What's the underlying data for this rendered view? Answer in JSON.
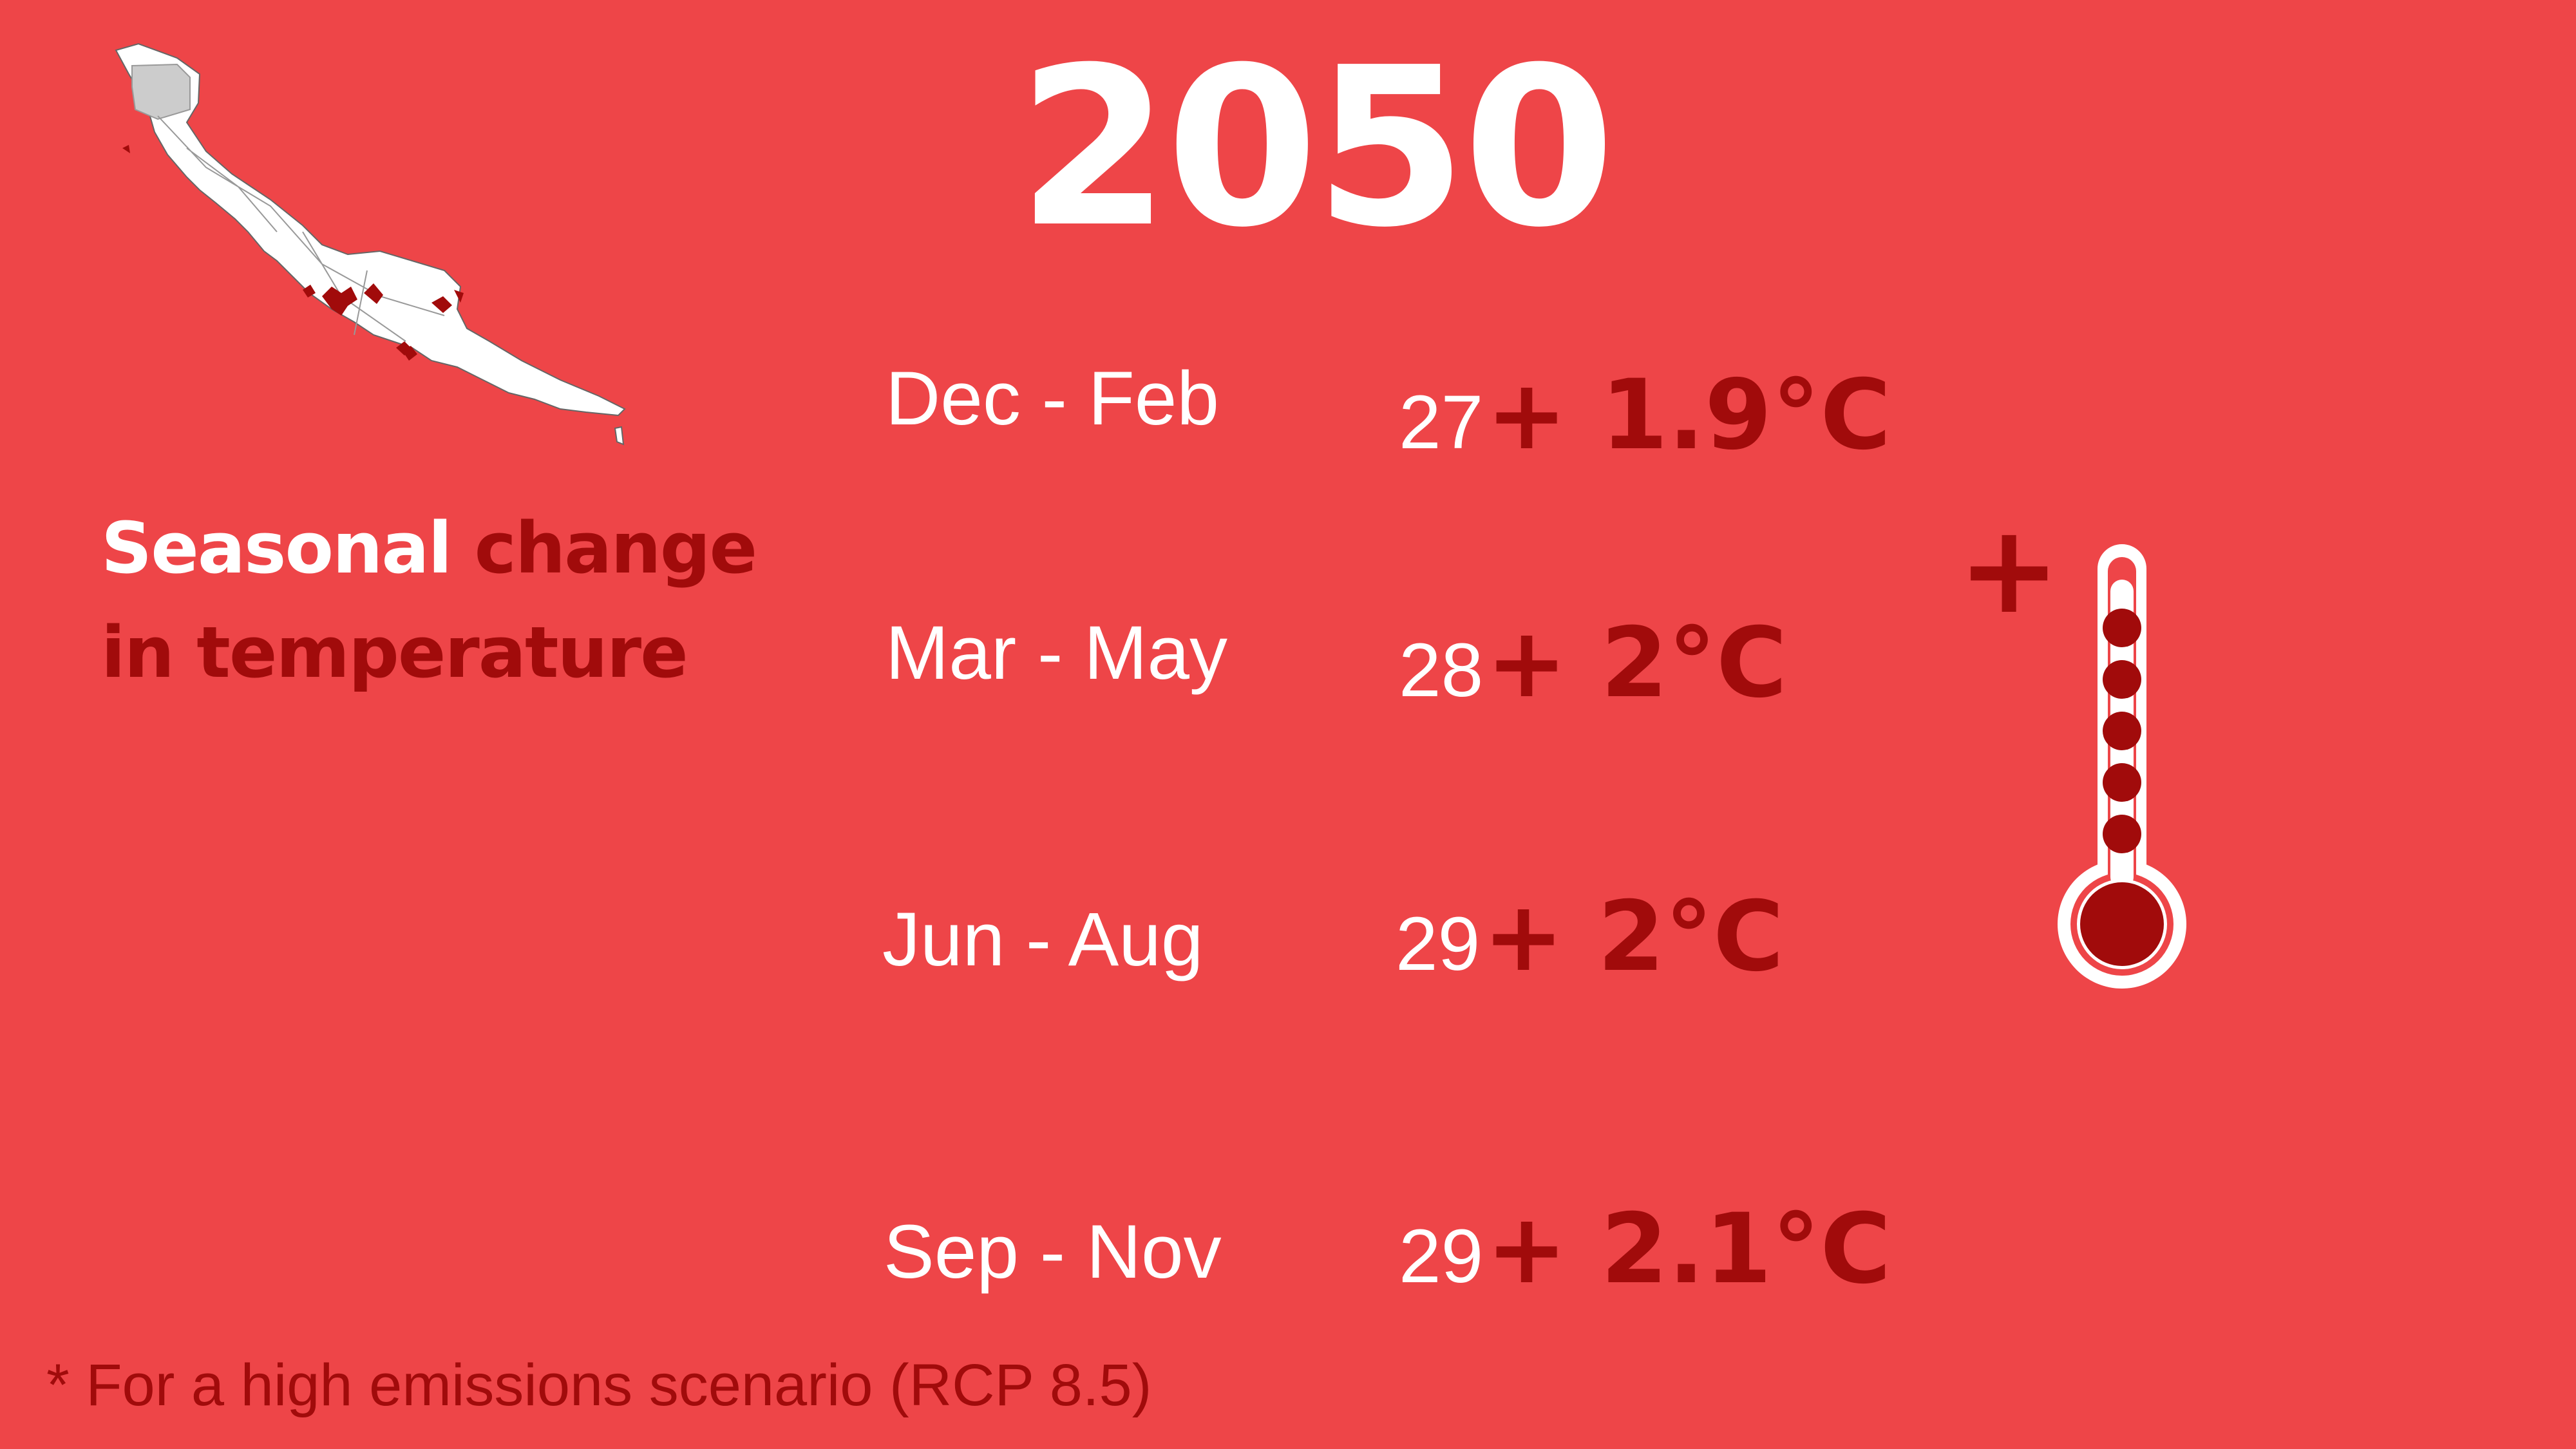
{
  "title": "2050",
  "subtitle": {
    "part1": "Seasonal",
    "part2": "change",
    "part3": "in temperature"
  },
  "seasons": [
    {
      "label": "Dec - Feb",
      "base": "27",
      "change": "+ 1.9°C"
    },
    {
      "label": "Mar - May",
      "base": "28",
      "change": "+ 2°C"
    },
    {
      "label": "Jun - Aug",
      "base": "29",
      "change": "+ 2°C"
    },
    {
      "label": "Sep - Nov",
      "base": "29",
      "change": "+ 2.1°C"
    }
  ],
  "plus_symbol": "+",
  "footnote": "* For a high emissions scenario (RCP 8.5)",
  "icons": {
    "map": "island-map-icon",
    "thermometer": "thermometer-icon"
  },
  "colors": {
    "background": "#ee4548",
    "accent": "#a10b0b",
    "text": "#ffffff"
  }
}
